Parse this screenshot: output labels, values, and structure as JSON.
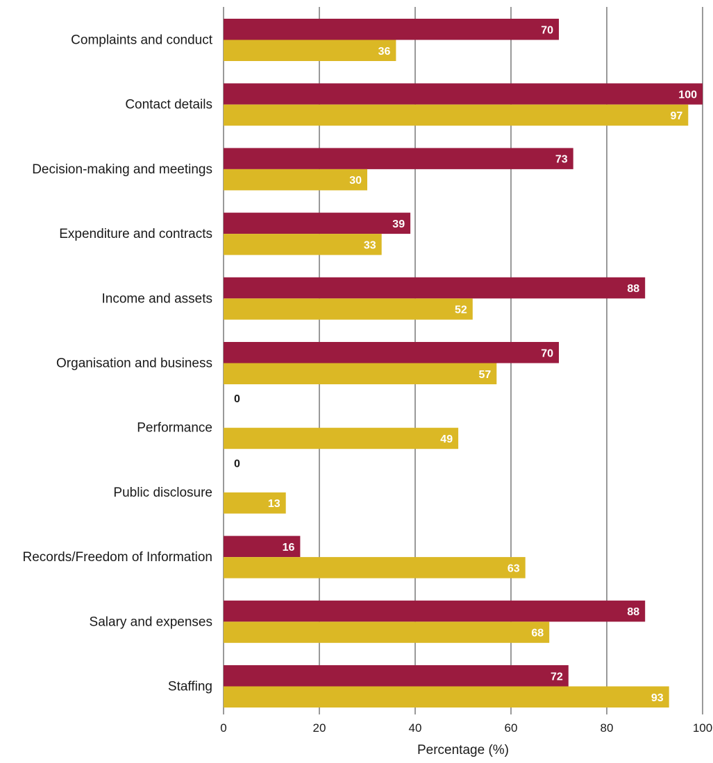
{
  "chart_data": {
    "type": "bar",
    "orientation": "horizontal",
    "title": "",
    "xlabel": "Percentage (%)",
    "ylabel": "",
    "xlim": [
      0,
      100
    ],
    "xticks": [
      0,
      20,
      40,
      60,
      80,
      100
    ],
    "grid": true,
    "legend": "none",
    "categories": [
      "Complaints and conduct",
      "Contact details",
      "Decision-making and meetings",
      "Expenditure and contracts",
      "Income and assets",
      "Organisation and business",
      "Performance",
      "Public disclosure",
      "Records/Freedom of Information",
      "Salary and expenses",
      "Staffing"
    ],
    "series": [
      {
        "color": "#9b1b3f",
        "values": [
          70,
          100,
          73,
          39,
          88,
          70,
          0,
          0,
          16,
          88,
          72
        ]
      },
      {
        "color": "#dbb825",
        "values": [
          36,
          97,
          30,
          33,
          52,
          57,
          49,
          13,
          63,
          68,
          93
        ]
      }
    ],
    "label_colors": {
      "inside": "#ffffff",
      "outside": "#1a1a1a"
    }
  }
}
